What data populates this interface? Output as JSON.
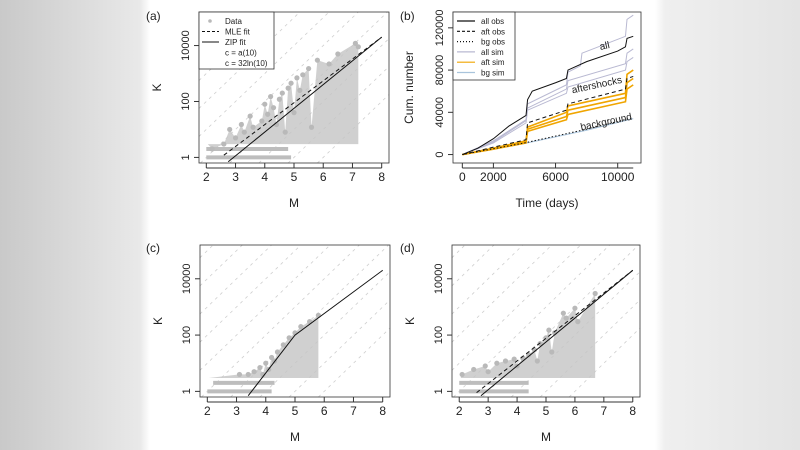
{
  "chart_data": [
    {
      "panel": "(a)",
      "type": "scatter",
      "xlabel": "M",
      "ylabel": "K",
      "xlim": [
        1.75,
        8.25
      ],
      "ylim_log10": [
        -0.2,
        5.2
      ],
      "y_scale": "log",
      "xticks": [
        2,
        3,
        4,
        5,
        6,
        7,
        8
      ],
      "yticks": [
        {
          "v": 1,
          "label": "1"
        },
        {
          "v": 100,
          "label": "100"
        },
        {
          "v": 10000,
          "label": "10000"
        }
      ],
      "legend": {
        "placement": "top-left",
        "entries": [
          "Data",
          "MLE fit",
          "ZIP fit",
          "c = a(10)",
          "c = 32ln(10)"
        ]
      },
      "reference_lines": {
        "slope_log10_per_M": 1,
        "intercepts_log10": [
          -6,
          -5,
          -4,
          -3,
          -2,
          -1,
          0,
          1,
          2,
          3,
          4
        ]
      },
      "points": [
        [
          2.2,
          2
        ],
        [
          2.6,
          3
        ],
        [
          3,
          5
        ],
        [
          3.3,
          8
        ],
        [
          3.6,
          12
        ],
        [
          3.9,
          20
        ],
        [
          4.1,
          35
        ],
        [
          4.3,
          60
        ],
        [
          4.5,
          120
        ],
        [
          4.6,
          200
        ],
        [
          4.8,
          300
        ],
        [
          4.9,
          450
        ],
        [
          5.1,
          700
        ],
        [
          5.3,
          900
        ],
        [
          5.5,
          1500
        ],
        [
          5.8,
          3000
        ],
        [
          6.2,
          2200
        ],
        [
          6.5,
          5000
        ],
        [
          7.1,
          12000
        ],
        [
          7.2,
          9000
        ],
        [
          4.4,
          15
        ],
        [
          4.7,
          8
        ],
        [
          5.0,
          40
        ],
        [
          5.6,
          12
        ],
        [
          3.5,
          30
        ],
        [
          4.0,
          80
        ],
        [
          2.8,
          10
        ],
        [
          3.2,
          15
        ],
        [
          4.2,
          150
        ],
        [
          5.2,
          250
        ]
      ],
      "bands": [
        {
          "K": 2,
          "M": [
            2,
            4.8
          ]
        },
        {
          "K": 1,
          "M": [
            2,
            4.9
          ]
        }
      ],
      "fits": [
        {
          "name": "MLE fit",
          "style": "dashed",
          "x": [
            2.6,
            8
          ],
          "y": [
            1.2,
            20000
          ]
        },
        {
          "name": "ZIP fit",
          "style": "solid",
          "x": [
            2.75,
            8
          ],
          "y": [
            0.7,
            20000
          ]
        }
      ]
    },
    {
      "panel": "(b)",
      "type": "line",
      "xlabel": "Time (days)",
      "ylabel": "Cum. number",
      "xlim": [
        -600,
        11500
      ],
      "ylim": [
        -8000,
        135000
      ],
      "xticks": [
        0,
        2000,
        6000,
        10000
      ],
      "yticks": [
        0,
        40000,
        80000,
        120000
      ],
      "legend": {
        "placement": "top-left",
        "entries": [
          "all obs",
          "aft obs",
          "bg obs",
          "all sim",
          "aft sim",
          "bg sim"
        ]
      },
      "annotations": [
        {
          "text": "all",
          "x": 9200,
          "y": 100000
        },
        {
          "text": "aftershocks",
          "x": 8700,
          "y": 63000
        },
        {
          "text": "background",
          "x": 9300,
          "y": 28000
        }
      ],
      "colors": {
        "obs": "#111111",
        "all_sim": "#b9b9d2",
        "aft_sim": "#f0a500",
        "bg_sim": "#a9c4dc"
      },
      "series": [
        {
          "name": "all obs",
          "style": "solid",
          "color": "#111111",
          "x": [
            0,
            1000,
            2000,
            3000,
            4100,
            4200,
            4500,
            6000,
            6700,
            6800,
            8000,
            10000,
            10500,
            10600,
            11000
          ],
          "y": [
            0,
            6000,
            15000,
            27000,
            37000,
            52000,
            60000,
            68000,
            72000,
            80000,
            88000,
            98000,
            102000,
            110000,
            112000
          ]
        },
        {
          "name": "aft obs",
          "style": "dashed",
          "color": "#111111",
          "x": [
            0,
            2000,
            4100,
            4200,
            6700,
            6800,
            10500,
            10600,
            11000
          ],
          "y": [
            0,
            7000,
            14000,
            30000,
            42000,
            48000,
            62000,
            72000,
            74000
          ]
        },
        {
          "name": "bg obs",
          "style": "dotted",
          "color": "#111111",
          "x": [
            0,
            4000,
            8000,
            11000
          ],
          "y": [
            0,
            11000,
            24000,
            35000
          ]
        },
        {
          "name": "all sim",
          "style": "solid",
          "color": "#b9b9d2",
          "x": [
            0,
            2000,
            4100,
            4200,
            6700,
            6800,
            7600,
            7700,
            10500,
            10600,
            11000
          ],
          "y": [
            0,
            13000,
            33000,
            48000,
            66000,
            78000,
            84000,
            96000,
            112000,
            128000,
            132000
          ]
        },
        {
          "name": "all sim",
          "style": "solid",
          "color": "#b9b9d2",
          "x": [
            0,
            2000,
            4100,
            4200,
            6700,
            6800,
            10500,
            10600,
            11000
          ],
          "y": [
            0,
            12000,
            32000,
            44000,
            62000,
            70000,
            86000,
            96000,
            100000
          ]
        },
        {
          "name": "all sim",
          "style": "solid",
          "color": "#b9b9d2",
          "x": [
            0,
            2000,
            4100,
            4200,
            6700,
            6800,
            10500,
            10600,
            11000
          ],
          "y": [
            0,
            11000,
            30000,
            42000,
            58000,
            64000,
            80000,
            88000,
            92000
          ]
        },
        {
          "name": "aft sim",
          "style": "solid",
          "color": "#f0a500",
          "x": [
            0,
            2000,
            4100,
            4200,
            6700,
            6800,
            10500,
            10600,
            11000
          ],
          "y": [
            0,
            6000,
            13000,
            26000,
            40000,
            46000,
            58000,
            76000,
            80000
          ]
        },
        {
          "name": "aft sim",
          "style": "solid",
          "color": "#f0a500",
          "x": [
            0,
            2000,
            4100,
            4200,
            6700,
            6800,
            10500,
            10600,
            11000
          ],
          "y": [
            0,
            5500,
            12000,
            24000,
            36000,
            42000,
            54000,
            68000,
            72000
          ]
        },
        {
          "name": "aft sim",
          "style": "solid",
          "color": "#f0a500",
          "x": [
            0,
            2000,
            4100,
            4200,
            6700,
            6800,
            10500,
            10600,
            11000
          ],
          "y": [
            0,
            5000,
            11000,
            22000,
            33000,
            38000,
            50000,
            62000,
            66000
          ]
        },
        {
          "name": "bg sim",
          "style": "solid",
          "color": "#a9c4dc",
          "x": [
            0,
            4000,
            8000,
            11000
          ],
          "y": [
            0,
            10500,
            23000,
            34000
          ]
        }
      ]
    },
    {
      "panel": "(c)",
      "type": "scatter",
      "xlabel": "M",
      "ylabel": "K",
      "xlim": [
        1.75,
        8.25
      ],
      "ylim_log10": [
        -0.2,
        5.2
      ],
      "y_scale": "log",
      "xticks": [
        2,
        3,
        4,
        5,
        6,
        7,
        8
      ],
      "yticks": [
        {
          "v": 1,
          "label": "1"
        },
        {
          "v": 100,
          "label": "100"
        },
        {
          "v": 10000,
          "label": "10000"
        }
      ],
      "reference_lines": {
        "slope_log10_per_M": 1,
        "intercepts_log10": [
          -6,
          -5,
          -4,
          -3,
          -2,
          -1,
          0,
          1,
          2,
          3,
          4
        ]
      },
      "points": [
        [
          3.1,
          4
        ],
        [
          3.4,
          4
        ],
        [
          3.6,
          5
        ],
        [
          3.8,
          7
        ],
        [
          4.0,
          10
        ],
        [
          4.2,
          16
        ],
        [
          4.4,
          25
        ],
        [
          4.6,
          45
        ],
        [
          4.8,
          80
        ],
        [
          5.0,
          120
        ],
        [
          5.2,
          200
        ],
        [
          5.5,
          300
        ],
        [
          5.8,
          500
        ],
        [
          4.1,
          6
        ],
        [
          3.9,
          4
        ],
        [
          4.3,
          12
        ]
      ],
      "bands": [
        {
          "K": 2,
          "M": [
            2.2,
            4.3
          ]
        },
        {
          "K": 1,
          "M": [
            2,
            4.2
          ]
        }
      ],
      "fits": [
        {
          "name": "fit",
          "style": "solid",
          "x": [
            3.4,
            5,
            8
          ],
          "y": [
            0.7,
            100,
            20000
          ]
        }
      ]
    },
    {
      "panel": "(d)",
      "type": "scatter",
      "xlabel": "M",
      "ylabel": "K",
      "xlim": [
        1.75,
        8.25
      ],
      "ylim_log10": [
        -0.2,
        5.2
      ],
      "y_scale": "log",
      "xticks": [
        2,
        3,
        4,
        5,
        6,
        7,
        8
      ],
      "yticks": [
        {
          "v": 1,
          "label": "1"
        },
        {
          "v": 100,
          "label": "100"
        },
        {
          "v": 10000,
          "label": "10000"
        }
      ],
      "reference_lines": {
        "slope_log10_per_M": 1,
        "intercepts_log10": [
          -6,
          -5,
          -4,
          -3,
          -2,
          -1,
          0,
          1,
          2,
          3,
          4
        ]
      },
      "points": [
        [
          2.1,
          4
        ],
        [
          2.5,
          6
        ],
        [
          2.9,
          8
        ],
        [
          3.3,
          10
        ],
        [
          3.6,
          12
        ],
        [
          3.9,
          14
        ],
        [
          4.2,
          15
        ],
        [
          4.4,
          20
        ],
        [
          4.6,
          30
        ],
        [
          4.8,
          50
        ],
        [
          5.0,
          80
        ],
        [
          5.1,
          150
        ],
        [
          5.3,
          120
        ],
        [
          5.6,
          600
        ],
        [
          5.7,
          400
        ],
        [
          6.0,
          900
        ],
        [
          6.1,
          300
        ],
        [
          6.7,
          3000
        ],
        [
          4.7,
          12
        ],
        [
          5.2,
          25
        ],
        [
          3.0,
          5
        ],
        [
          4.0,
          8
        ]
      ],
      "bands": [
        {
          "K": 2,
          "M": [
            2,
            4.4
          ]
        },
        {
          "K": 1,
          "M": [
            2,
            4.4
          ]
        }
      ],
      "fits": [
        {
          "name": "fit",
          "style": "dashed",
          "x": [
            2.6,
            8
          ],
          "y": [
            0.9,
            20000
          ]
        },
        {
          "name": "fit",
          "style": "solid",
          "x": [
            2.75,
            8
          ],
          "y": [
            0.7,
            20000
          ]
        }
      ]
    }
  ]
}
